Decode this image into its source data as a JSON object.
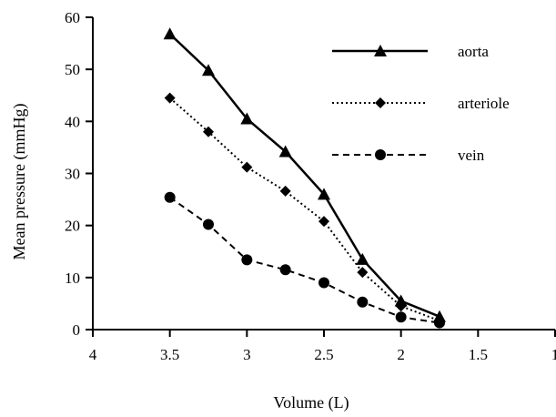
{
  "chart_data": {
    "type": "line",
    "title": "",
    "xlabel": "Volume (L)",
    "ylabel": "Mean pressure (mmHg)",
    "xlim": [
      4,
      1
    ],
    "ylim": [
      0,
      60
    ],
    "x_reversed": true,
    "xticks": [
      "4",
      "3.5",
      "3",
      "2.5",
      "2",
      "1.5",
      "1"
    ],
    "yticks": [
      "0",
      "10",
      "20",
      "30",
      "40",
      "50",
      "60"
    ],
    "grid": false,
    "legend_position": "top-right",
    "x": [
      3.5,
      3.25,
      3.0,
      2.75,
      2.5,
      2.25,
      2.0,
      1.75
    ],
    "series": [
      {
        "name": "aorta",
        "marker": "triangle",
        "line_style": "solid",
        "values": [
          56.8,
          49.8,
          40.5,
          34.2,
          26.0,
          13.5,
          5.5,
          2.5
        ]
      },
      {
        "name": "arteriole",
        "marker": "diamond",
        "line_style": "dotted",
        "values": [
          44.5,
          38.0,
          31.2,
          26.6,
          20.8,
          11.0,
          4.5,
          1.7
        ]
      },
      {
        "name": "vein",
        "marker": "circle",
        "line_style": "dashed",
        "values": [
          25.4,
          20.2,
          13.4,
          11.5,
          9.0,
          5.3,
          2.4,
          1.3
        ]
      }
    ]
  }
}
